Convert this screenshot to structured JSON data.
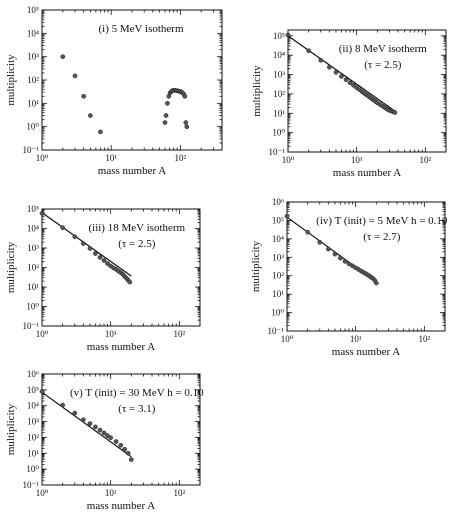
{
  "chart_data": [
    {
      "id": "i",
      "type": "scatter",
      "annotation": [
        "(i) 5 MeV isotherm"
      ],
      "xlabel": "mass number A",
      "ylabel": "multiplicity",
      "xscale": "log",
      "yscale": "log",
      "xlim": [
        1,
        400
      ],
      "ylim": [
        0.1,
        100000
      ],
      "xticks": [
        "10⁰",
        "10¹",
        "10²"
      ],
      "yticks": [
        "10⁻¹",
        "10⁰",
        "10¹",
        "10²",
        "10³",
        "10⁴",
        "10⁵"
      ],
      "points": {
        "x": [
          2,
          3,
          4,
          5,
          7,
          60,
          62,
          65,
          68,
          71,
          74,
          77,
          80,
          84,
          88,
          92,
          96,
          100,
          104,
          108,
          112,
          116,
          120,
          124
        ],
        "y": [
          1000,
          150,
          20,
          3,
          0.6,
          1.5,
          3,
          10,
          20,
          28,
          32,
          35,
          36,
          36,
          35,
          34,
          33,
          32,
          30,
          28,
          25,
          20,
          1.5,
          1
        ]
      },
      "fit": null
    },
    {
      "id": "ii",
      "type": "scatter",
      "annotation": [
        "(ii) 8 MeV isotherm",
        "(τ = 2.5)"
      ],
      "xlabel": "mass number A",
      "ylabel": "multiplicity",
      "xscale": "log",
      "yscale": "log",
      "xlim": [
        1,
        200
      ],
      "ylim": [
        0.1,
        200000
      ],
      "xticks": [
        "10⁰",
        "10¹",
        "10²"
      ],
      "yticks": [
        "10⁻¹",
        "10⁰",
        "10¹",
        "10²",
        "10³",
        "10⁴",
        "10⁵"
      ],
      "points": {
        "x": [
          1,
          2,
          3,
          4,
          5,
          6,
          7,
          8,
          9,
          10,
          11,
          12,
          13,
          14,
          15,
          16,
          17,
          18,
          19,
          20,
          22,
          24,
          26,
          28,
          30,
          32,
          34,
          36
        ],
        "y": [
          110000,
          17000,
          5500,
          2400,
          1300,
          800,
          540,
          380,
          280,
          210,
          165,
          130,
          105,
          88,
          74,
          62,
          53,
          46,
          40,
          35,
          28,
          23,
          19,
          16,
          14,
          13,
          12,
          11
        ]
      },
      "fit": {
        "slope": -2.5,
        "x": [
          1,
          35
        ],
        "y": [
          100000,
          14
        ]
      }
    },
    {
      "id": "iii",
      "type": "scatter",
      "annotation": [
        "(iii) 18 MeV isotherm",
        "(τ = 2.5)"
      ],
      "xlabel": "mass number A",
      "ylabel": "multiplicity",
      "xscale": "log",
      "yscale": "log",
      "xlim": [
        1,
        200
      ],
      "ylim": [
        0.1,
        100000
      ],
      "xticks": [
        "10⁰",
        "10¹",
        "10²"
      ],
      "yticks": [
        "10⁻¹",
        "10⁰",
        "10¹",
        "10²",
        "10³",
        "10⁴",
        "10⁵"
      ],
      "points": {
        "x": [
          1,
          2,
          3,
          4,
          5,
          6,
          7,
          8,
          9,
          10,
          11,
          12,
          13,
          14,
          15,
          16,
          17,
          18,
          19
        ],
        "y": [
          60000,
          11000,
          3800,
          1700,
          950,
          520,
          330,
          230,
          160,
          120,
          95,
          80,
          65,
          55,
          45,
          35,
          28,
          22,
          18
        ]
      },
      "fit": {
        "slope": -2.5,
        "x": [
          1,
          20
        ],
        "y": [
          65000,
          36
        ]
      }
    },
    {
      "id": "iv",
      "type": "scatter",
      "annotation": [
        "(iv) T (init) = 5 MeV h = 0.10",
        "(τ = 2.7)"
      ],
      "xlabel": "mass number A",
      "ylabel": "multiplicity",
      "xscale": "log",
      "yscale": "log",
      "xlim": [
        1,
        200
      ],
      "ylim": [
        0.1,
        1000000
      ],
      "xticks": [
        "10⁰",
        "10¹",
        "10²"
      ],
      "yticks": [
        "10⁻¹",
        "10⁰",
        "10¹",
        "10²",
        "10³",
        "10⁴",
        "10⁵",
        "10⁶"
      ],
      "points": {
        "x": [
          1,
          2,
          3,
          4,
          5,
          6,
          7,
          8,
          9,
          10,
          11,
          12,
          13,
          14,
          15,
          16,
          17,
          18,
          19,
          20
        ],
        "y": [
          170000,
          23000,
          6500,
          2800,
          1500,
          900,
          600,
          440,
          340,
          270,
          220,
          180,
          150,
          130,
          110,
          95,
          80,
          70,
          55,
          40
        ]
      },
      "fit": {
        "slope": -2.7,
        "x": [
          1,
          20
        ],
        "y": [
          150000,
          45
        ]
      }
    },
    {
      "id": "v",
      "type": "scatter",
      "annotation": [
        "(v) T (init) = 30 MeV h = 0.10",
        "(τ = 3.1)"
      ],
      "xlabel": "mass number A",
      "ylabel": "multiplicity",
      "xscale": "log",
      "yscale": "log",
      "xlim": [
        1,
        200
      ],
      "ylim": [
        0.1,
        1000000
      ],
      "xticks": [
        "10⁰",
        "10¹",
        "10²"
      ],
      "yticks": [
        "10⁻¹",
        "10⁰",
        "10¹",
        "10²",
        "10³",
        "10⁴",
        "10⁵",
        "10⁶"
      ],
      "points": {
        "x": [
          1,
          2,
          3,
          4,
          5,
          6,
          7,
          8,
          9,
          10,
          12,
          14,
          16,
          18,
          20
        ],
        "y": [
          80000,
          11000,
          3400,
          1300,
          750,
          460,
          290,
          190,
          130,
          95,
          55,
          32,
          18,
          10,
          4
        ]
      },
      "fit": {
        "slope": -3.1,
        "x": [
          1,
          20
        ],
        "y": [
          70000,
          6
        ]
      }
    }
  ]
}
